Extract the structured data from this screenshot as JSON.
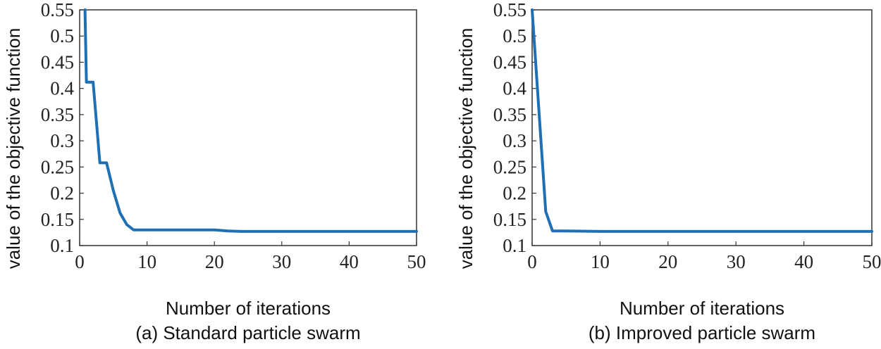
{
  "chart_data": [
    {
      "type": "line",
      "caption": "(a) Standard particle swarm",
      "xlabel": "Number of iterations",
      "ylabel": "value of the objective function",
      "xlim": [
        0,
        50
      ],
      "ylim": [
        0.1,
        0.55
      ],
      "xticks": [
        "0",
        "10",
        "20",
        "30",
        "40",
        "50"
      ],
      "yticks": [
        "0.1",
        "0.15",
        "0.2",
        "0.25",
        "0.3",
        "0.35",
        "0.4",
        "0.45",
        "0.5",
        "0.55"
      ],
      "grid": false,
      "color": "#1f6fb4",
      "series": [
        {
          "x": [
            0.8,
            1,
            2,
            3,
            4,
            5,
            6,
            7,
            8,
            9,
            10,
            15,
            20,
            22,
            24,
            30,
            40,
            50
          ],
          "y": [
            0.55,
            0.412,
            0.412,
            0.258,
            0.258,
            0.205,
            0.162,
            0.14,
            0.13,
            0.13,
            0.13,
            0.13,
            0.13,
            0.128,
            0.127,
            0.127,
            0.127,
            0.127
          ]
        }
      ]
    },
    {
      "type": "line",
      "caption": "(b) Improved particle swarm",
      "xlabel": "Number of iterations",
      "ylabel": "value of the objective function",
      "xlim": [
        0,
        50
      ],
      "ylim": [
        0.1,
        0.55
      ],
      "xticks": [
        "0",
        "10",
        "20",
        "30",
        "40",
        "50"
      ],
      "yticks": [
        "0.1",
        "0.15",
        "0.2",
        "0.25",
        "0.3",
        "0.35",
        "0.4",
        "0.45",
        "0.5",
        "0.55"
      ],
      "grid": false,
      "color": "#1f6fb4",
      "series": [
        {
          "x": [
            0,
            2,
            3,
            5,
            10,
            20,
            30,
            40,
            50
          ],
          "y": [
            0.55,
            0.165,
            0.128,
            0.128,
            0.127,
            0.127,
            0.127,
            0.127,
            0.127
          ]
        }
      ]
    }
  ]
}
